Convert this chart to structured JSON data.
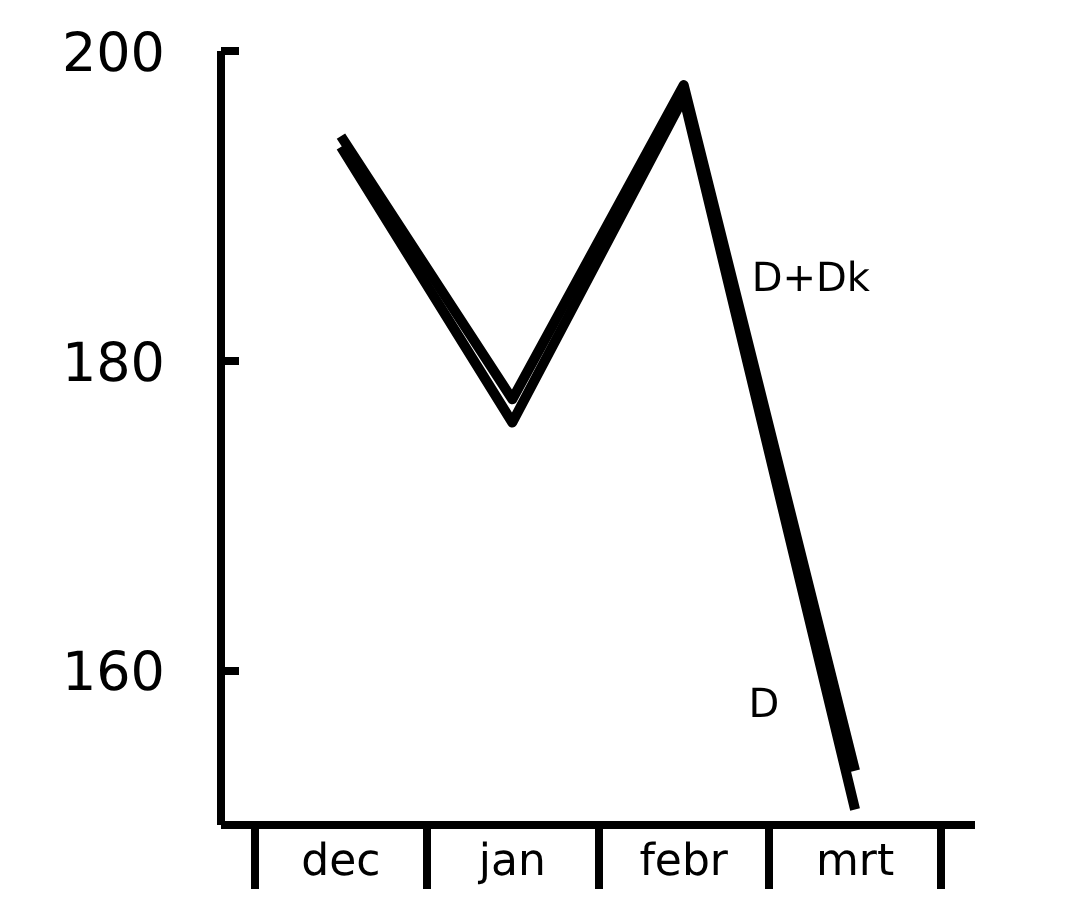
{
  "chart_data": {
    "type": "line",
    "categories": [
      "dec",
      "jan",
      "febr",
      "mrt"
    ],
    "series": [
      {
        "name": "D+Dk",
        "color": "#000000",
        "values": [
          194.5,
          177.5,
          197.8,
          153.5
        ]
      },
      {
        "name": "D",
        "color": "#000000",
        "values": [
          193.8,
          176.0,
          197.0,
          151.0
        ]
      }
    ],
    "ylim": [
      150,
      200
    ],
    "yticks": [
      160,
      180,
      200
    ],
    "grid": false,
    "marker": "none",
    "line_style": "solid"
  }
}
